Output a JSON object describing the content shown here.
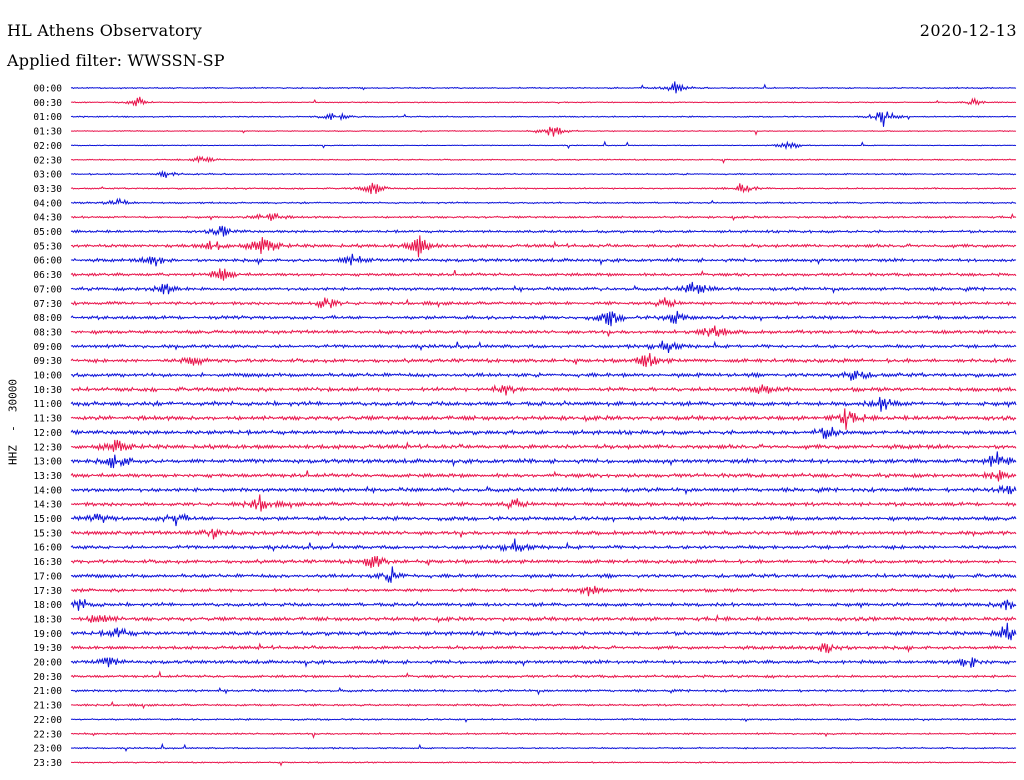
{
  "header": {
    "station": "HL Athens Observatory",
    "date": "2020-12-13",
    "filter": "Applied filter: WWSSN-SP",
    "channel": "HHZ  -  30000"
  },
  "colors": {
    "trace_a": "#0a10d8",
    "trace_b": "#e8124a"
  },
  "chart_data": {
    "type": "line",
    "title": "HL Athens Observatory",
    "subtitle": "Applied filter: WWSSN-SP",
    "date": "2020-12-13",
    "ylabel": "HHZ  -  30000",
    "xlabel": "",
    "grid": false,
    "legend": "none",
    "row_times": [
      "00:00",
      "00:30",
      "01:00",
      "01:30",
      "02:00",
      "02:30",
      "03:00",
      "03:30",
      "04:00",
      "04:30",
      "05:00",
      "05:30",
      "06:00",
      "06:30",
      "07:00",
      "07:30",
      "08:00",
      "08:30",
      "09:00",
      "09:30",
      "10:00",
      "10:30",
      "11:00",
      "11:30",
      "12:00",
      "12:30",
      "13:00",
      "13:30",
      "14:00",
      "14:30",
      "15:00",
      "15:30",
      "16:00",
      "16:30",
      "17:00",
      "17:30",
      "18:00",
      "18:30",
      "19:00",
      "19:30",
      "20:00",
      "20:30",
      "21:00",
      "21:30",
      "22:00",
      "22:30",
      "23:00",
      "23:30"
    ],
    "row_noise": [
      0.6,
      0.5,
      0.6,
      0.45,
      0.4,
      0.6,
      0.7,
      0.7,
      0.8,
      1.0,
      1.2,
      1.6,
      1.5,
      1.4,
      1.5,
      1.5,
      1.6,
      1.6,
      1.6,
      1.7,
      1.8,
      1.8,
      2.0,
      2.0,
      1.9,
      2.0,
      1.9,
      1.8,
      1.8,
      1.8,
      1.8,
      1.8,
      1.7,
      1.7,
      1.7,
      1.5,
      1.7,
      1.8,
      1.8,
      1.6,
      1.6,
      1.2,
      1.1,
      1.0,
      0.8,
      0.8,
      0.7,
      0.6
    ],
    "events": [
      {
        "row": 0,
        "frac": 0.64,
        "amp": 7
      },
      {
        "row": 1,
        "frac": 0.07,
        "amp": 4
      },
      {
        "row": 1,
        "frac": 0.955,
        "amp": 4
      },
      {
        "row": 2,
        "frac": 0.28,
        "amp": 6
      },
      {
        "row": 2,
        "frac": 0.86,
        "amp": 10
      },
      {
        "row": 3,
        "frac": 0.51,
        "amp": 8
      },
      {
        "row": 4,
        "frac": 0.76,
        "amp": 5
      },
      {
        "row": 5,
        "frac": 0.14,
        "amp": 5
      },
      {
        "row": 6,
        "frac": 0.1,
        "amp": 4
      },
      {
        "row": 7,
        "frac": 0.71,
        "amp": 7
      },
      {
        "row": 7,
        "frac": 0.32,
        "amp": 7
      },
      {
        "row": 8,
        "frac": 0.05,
        "amp": 5
      },
      {
        "row": 9,
        "frac": 0.21,
        "amp": 8
      },
      {
        "row": 10,
        "frac": 0.16,
        "amp": 6
      },
      {
        "row": 11,
        "frac": 0.15,
        "amp": 6
      },
      {
        "row": 11,
        "frac": 0.21,
        "amp": 6
      },
      {
        "row": 11,
        "frac": 0.2,
        "amp": 8
      },
      {
        "row": 11,
        "frac": 0.37,
        "amp": 14
      },
      {
        "row": 12,
        "frac": 0.09,
        "amp": 8
      },
      {
        "row": 12,
        "frac": 0.3,
        "amp": 8
      },
      {
        "row": 13,
        "frac": 0.16,
        "amp": 8
      },
      {
        "row": 14,
        "frac": 0.1,
        "amp": 7
      },
      {
        "row": 14,
        "frac": 0.66,
        "amp": 9
      },
      {
        "row": 15,
        "frac": 0.27,
        "amp": 8
      },
      {
        "row": 15,
        "frac": 0.63,
        "amp": 6
      },
      {
        "row": 16,
        "frac": 0.57,
        "amp": 9
      },
      {
        "row": 16,
        "frac": 0.64,
        "amp": 7
      },
      {
        "row": 17,
        "frac": 0.68,
        "amp": 10
      },
      {
        "row": 18,
        "frac": 0.63,
        "amp": 8
      },
      {
        "row": 19,
        "frac": 0.61,
        "amp": 9
      },
      {
        "row": 19,
        "frac": 0.13,
        "amp": 6
      },
      {
        "row": 20,
        "frac": 0.83,
        "amp": 8
      },
      {
        "row": 21,
        "frac": 0.73,
        "amp": 7
      },
      {
        "row": 21,
        "frac": 0.46,
        "amp": 7
      },
      {
        "row": 22,
        "frac": 0.86,
        "amp": 9
      },
      {
        "row": 23,
        "frac": 0.82,
        "amp": 10
      },
      {
        "row": 24,
        "frac": 0.8,
        "amp": 7
      },
      {
        "row": 25,
        "frac": 0.05,
        "amp": 9
      },
      {
        "row": 26,
        "frac": 0.05,
        "amp": 10
      },
      {
        "row": 26,
        "frac": 0.98,
        "amp": 10
      },
      {
        "row": 27,
        "frac": 0.98,
        "amp": 7
      },
      {
        "row": 28,
        "frac": 0.99,
        "amp": 6
      },
      {
        "row": 29,
        "frac": 0.2,
        "amp": 9
      },
      {
        "row": 29,
        "frac": 0.47,
        "amp": 6
      },
      {
        "row": 30,
        "frac": 0.11,
        "amp": 8
      },
      {
        "row": 30,
        "frac": 0.03,
        "amp": 5
      },
      {
        "row": 31,
        "frac": 0.15,
        "amp": 6
      },
      {
        "row": 32,
        "frac": 0.47,
        "amp": 8
      },
      {
        "row": 33,
        "frac": 0.32,
        "amp": 8
      },
      {
        "row": 34,
        "frac": 0.34,
        "amp": 8
      },
      {
        "row": 35,
        "frac": 0.55,
        "amp": 8
      },
      {
        "row": 36,
        "frac": 0.01,
        "amp": 7
      },
      {
        "row": 36,
        "frac": 0.99,
        "amp": 7
      },
      {
        "row": 37,
        "frac": 0.03,
        "amp": 8
      },
      {
        "row": 38,
        "frac": 0.99,
        "amp": 10
      },
      {
        "row": 38,
        "frac": 0.05,
        "amp": 6
      },
      {
        "row": 39,
        "frac": 0.8,
        "amp": 10
      },
      {
        "row": 40,
        "frac": 0.95,
        "amp": 8
      },
      {
        "row": 40,
        "frac": 0.04,
        "amp": 5
      }
    ]
  }
}
